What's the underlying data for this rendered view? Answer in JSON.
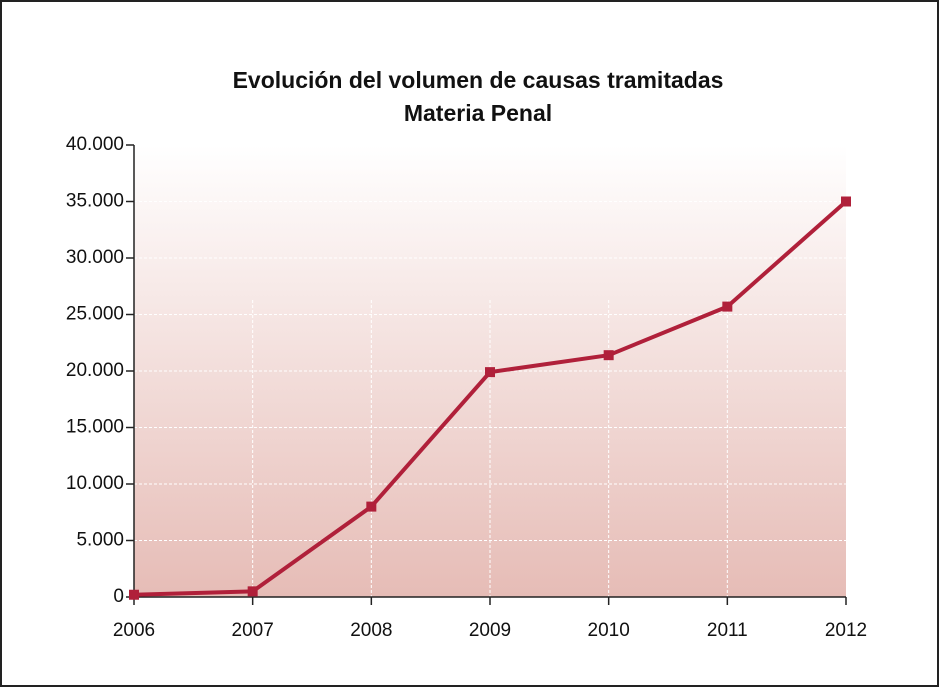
{
  "chart_data": {
    "type": "line",
    "title": "Evolución del volumen de causas tramitadas",
    "subtitle": "Materia Penal",
    "x": [
      2006,
      2007,
      2008,
      2009,
      2010,
      2011,
      2012
    ],
    "xlim": [
      2006,
      2012
    ],
    "xticks": [
      2006,
      2007,
      2008,
      2009,
      2010,
      2011,
      2012
    ],
    "series": [
      {
        "name": "Materia Penal",
        "color": "#b0203a",
        "values": [
          200,
          500,
          8000,
          19900,
          21400,
          25700,
          35000
        ]
      }
    ],
    "ylim": [
      0,
      40000
    ],
    "yticks": [
      0,
      {
        "value": 5000,
        "label": "5.000"
      },
      {
        "value": 10000,
        "label": "10.000"
      },
      {
        "value": 15000,
        "label": "15.000"
      },
      {
        "value": 20000,
        "label": "20.000"
      },
      {
        "value": 25000,
        "label": "25.000"
      },
      {
        "value": 30000,
        "label": "30.000"
      },
      {
        "value": 35000,
        "label": "35.000"
      },
      {
        "value": 40000,
        "label": "40.000"
      }
    ],
    "grid": true
  }
}
